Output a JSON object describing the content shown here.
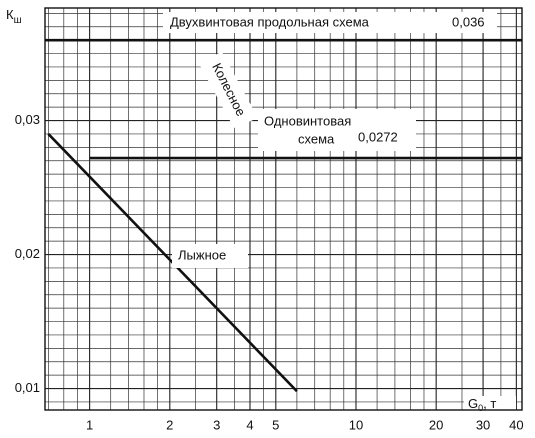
{
  "chart_data": {
    "type": "line",
    "xscale": "log",
    "grid": true,
    "ylabel": {
      "main": "К",
      "sub": "ш"
    },
    "xlabel": {
      "main": "G",
      "sub": "0",
      "tail": ", т"
    },
    "xlim": [
      0.68,
      42
    ],
    "ylim": [
      0.0084,
      0.0384
    ],
    "xticks": [
      1,
      2,
      3,
      4,
      5,
      10,
      20,
      30,
      40
    ],
    "yticks": [
      {
        "value": 0.01,
        "label": "0,01"
      },
      {
        "value": 0.02,
        "label": "0,02"
      },
      {
        "value": 0.03,
        "label": "0,03"
      }
    ],
    "xminor": [
      0.7,
      0.8,
      0.9,
      1.2,
      1.4,
      1.6,
      1.8,
      2.5,
      3.5,
      4.5,
      6,
      7,
      8,
      9,
      12,
      14,
      16,
      18,
      25,
      35
    ],
    "yminor": [
      0.009,
      0.011,
      0.012,
      0.013,
      0.014,
      0.015,
      0.016,
      0.017,
      0.018,
      0.019,
      0.021,
      0.022,
      0.023,
      0.024,
      0.025,
      0.026,
      0.027,
      0.028,
      0.029,
      0.031,
      0.032,
      0.033,
      0.034,
      0.035,
      0.036,
      0.037,
      0.038
    ],
    "series": [
      {
        "color": "#111111",
        "x": [
          0.68,
          42
        ],
        "values": [
          0.036,
          0.036
        ]
      },
      {
        "color": "#111111",
        "x": [
          1,
          42
        ],
        "values": [
          0.0272,
          0.0272
        ]
      },
      {
        "color": "#111111",
        "x": [
          0.7,
          6
        ],
        "values": [
          0.029,
          0.0098
        ]
      }
    ],
    "annotations": [
      "Двухвинтовая продольная схема",
      "0,036",
      "Колесное",
      "Одновинтовая",
      "схема",
      "0,0272",
      "Лыжное"
    ]
  }
}
